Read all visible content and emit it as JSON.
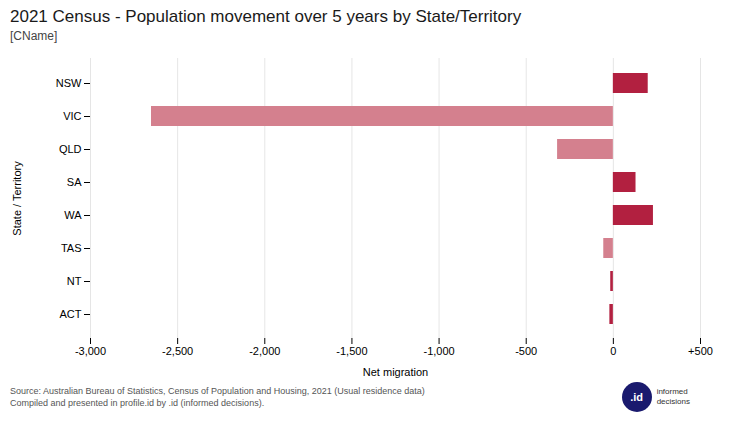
{
  "chart_data": {
    "type": "bar",
    "orientation": "horizontal",
    "title": "2021 Census - Population movement over 5 years by State/Territory",
    "subtitle": "[CName]",
    "xlabel": "Net migration",
    "ylabel": "State / Territory",
    "categories": [
      "NSW",
      "VIC",
      "QLD",
      "SA",
      "WA",
      "TAS",
      "NT",
      "ACT"
    ],
    "values": [
      200,
      -2650,
      -320,
      130,
      230,
      -55,
      -15,
      -20
    ],
    "colors": [
      "#b22040",
      "#d4808e",
      "#d4808e",
      "#b22040",
      "#b22040",
      "#d4808e",
      "#b22040",
      "#b22040"
    ],
    "xlim": [
      -3000,
      500
    ],
    "xticks": [
      {
        "value": -3000,
        "label": "-3,000"
      },
      {
        "value": -2500,
        "label": "-2,500"
      },
      {
        "value": -2000,
        "label": "-2,000"
      },
      {
        "value": -1500,
        "label": "-1,500"
      },
      {
        "value": -1000,
        "label": "-1,000"
      },
      -500,
      0,
      {
        "value": 500,
        "label": "+500"
      }
    ],
    "grid": true,
    "annotations": [
      "Source: Australian Bureau of Statistics, Census of Population and Housing, 2021 (Usual residence data)\nCompiled and presented in profile.id by .id (informed decisions).",
      ".id",
      "informed",
      "decisions"
    ]
  }
}
